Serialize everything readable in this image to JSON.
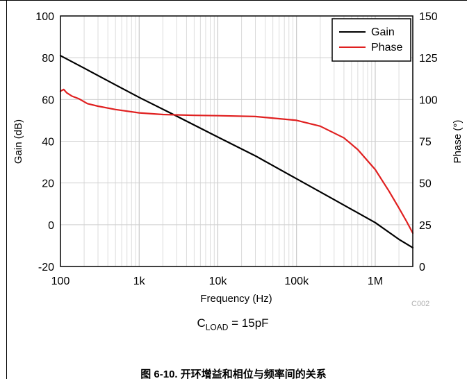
{
  "chart_data": {
    "type": "line",
    "xlabel": "Frequency (Hz)",
    "ylabel": "Gain (dB)",
    "y2label": "Phase (°)",
    "xscale": "log",
    "xlim": [
      100,
      3000000
    ],
    "ylim": [
      -20,
      100
    ],
    "y2lim": [
      0,
      150
    ],
    "x_ticks": [
      {
        "value": 100,
        "label": "100"
      },
      {
        "value": 1000,
        "label": "1k"
      },
      {
        "value": 10000,
        "label": "10k"
      },
      {
        "value": 100000,
        "label": "100k"
      },
      {
        "value": 1000000,
        "label": "1M"
      }
    ],
    "y_ticks": [
      {
        "value": -20,
        "label": "-20"
      },
      {
        "value": 0,
        "label": "0"
      },
      {
        "value": 20,
        "label": "20"
      },
      {
        "value": 40,
        "label": "40"
      },
      {
        "value": 60,
        "label": "60"
      },
      {
        "value": 80,
        "label": "80"
      },
      {
        "value": 100,
        "label": "100"
      }
    ],
    "y2_ticks": [
      {
        "value": 0,
        "label": "0"
      },
      {
        "value": 25,
        "label": "25"
      },
      {
        "value": 50,
        "label": "50"
      },
      {
        "value": 75,
        "label": "75"
      },
      {
        "value": 100,
        "label": "100"
      },
      {
        "value": 125,
        "label": "125"
      },
      {
        "value": 150,
        "label": "150"
      }
    ],
    "grid": true,
    "legend_position": "top-right",
    "series": [
      {
        "name": "Gain",
        "axis": "left",
        "color": "#000000",
        "x": [
          100,
          200,
          500,
          1000,
          3000,
          10000,
          30000,
          100000,
          300000,
          1000000,
          2000000,
          3000000
        ],
        "y": [
          81,
          75,
          67,
          61,
          52,
          42,
          33,
          22,
          12,
          1,
          -7,
          -11
        ]
      },
      {
        "name": "Phase",
        "axis": "right",
        "color": "#e02020",
        "x": [
          100,
          110,
          120,
          140,
          170,
          220,
          300,
          500,
          1000,
          2000,
          5000,
          10000,
          30000,
          100000,
          200000,
          400000,
          600000,
          1000000,
          1500000,
          2000000,
          2500000,
          3000000
        ],
        "y": [
          105,
          106,
          104,
          102,
          100.5,
          97.5,
          96,
          94,
          92,
          91,
          90.5,
          90.3,
          89.8,
          87.5,
          84,
          77,
          70,
          58,
          45,
          35,
          27,
          20
        ]
      }
    ],
    "watermark": "C002"
  },
  "condition": {
    "main": "C",
    "sub": "LOAD",
    "rest": " = 15pF"
  },
  "caption": "图 6-10. 开环增益和相位与频率间的关系"
}
